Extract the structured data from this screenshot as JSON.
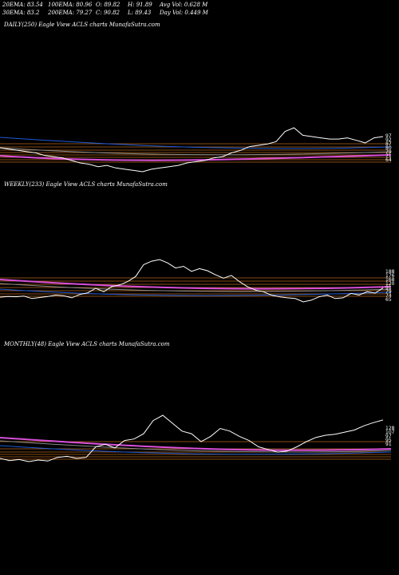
{
  "stats": {
    "ema20": "20EMA: 83.54",
    "ema100": "100EMA: 80.96",
    "open": "O: 89.82",
    "high": "H: 91.89",
    "avg_vol": "Avg Vol: 0.628 M",
    "ema30": "30EMA: 83.2",
    "ema200": "200EMA: 79.27",
    "close": "C: 90.82",
    "low": "L: 89.43",
    "day_vol": "Day Vol: 0.449 M"
  },
  "colors": {
    "background": "#000000",
    "price": "#ffffff",
    "ema_fast": "#1e5bd6",
    "ema_mid": "#8a8a8a",
    "ema_long": "#d94fd9",
    "band": "#b5651d"
  },
  "chart_data": [
    {
      "type": "line",
      "title": "DAILY(250) Eagle   View  ACLS charts MunafaSutra.com",
      "right_labels": [
        "97",
        "92",
        "87",
        "80",
        "79",
        "71",
        "64"
      ],
      "series": [
        {
          "values": [
            82,
            81,
            80,
            79,
            78,
            76,
            75,
            74,
            72,
            70,
            69,
            67,
            68,
            66,
            65,
            64,
            63,
            65,
            66,
            67,
            68,
            70,
            71,
            72,
            74,
            75,
            78,
            80,
            83,
            84,
            85,
            87,
            95,
            98,
            92,
            91,
            90,
            89,
            89,
            90,
            88,
            86,
            90,
            91
          ]
        }
      ]
    },
    {
      "type": "line",
      "title": "WEEKLY(233) Eagle   View  ACLS charts MunafaSutra.com",
      "right_labels": [
        "188",
        "176",
        "168",
        "120",
        "91",
        "79",
        "74",
        "65"
      ],
      "series": [
        {
          "values": [
            64,
            66,
            65,
            67,
            60,
            63,
            66,
            70,
            68,
            62,
            72,
            77,
            90,
            80,
            95,
            100,
            110,
            125,
            160,
            170,
            175,
            165,
            150,
            155,
            140,
            148,
            142,
            130,
            120,
            128,
            110,
            95,
            85,
            80,
            70,
            65,
            62,
            60,
            50,
            55,
            65,
            70,
            60,
            62,
            75,
            70,
            80,
            76,
            91
          ]
        }
      ]
    },
    {
      "type": "line",
      "title": "MONTHLY(48) Eagle   View  ACLS charts MunafaSutra.com",
      "right_labels": [
        "128",
        "107",
        "97",
        "95",
        "91"
      ],
      "series": [
        {
          "values": [
            18,
            14,
            16,
            12,
            15,
            13,
            20,
            22,
            18,
            20,
            40,
            45,
            38,
            52,
            55,
            65,
            90,
            100,
            85,
            70,
            65,
            50,
            60,
            75,
            70,
            60,
            52,
            40,
            35,
            30,
            32,
            40,
            50,
            58,
            62,
            64,
            68,
            72,
            80,
            86,
            91
          ]
        }
      ]
    }
  ]
}
